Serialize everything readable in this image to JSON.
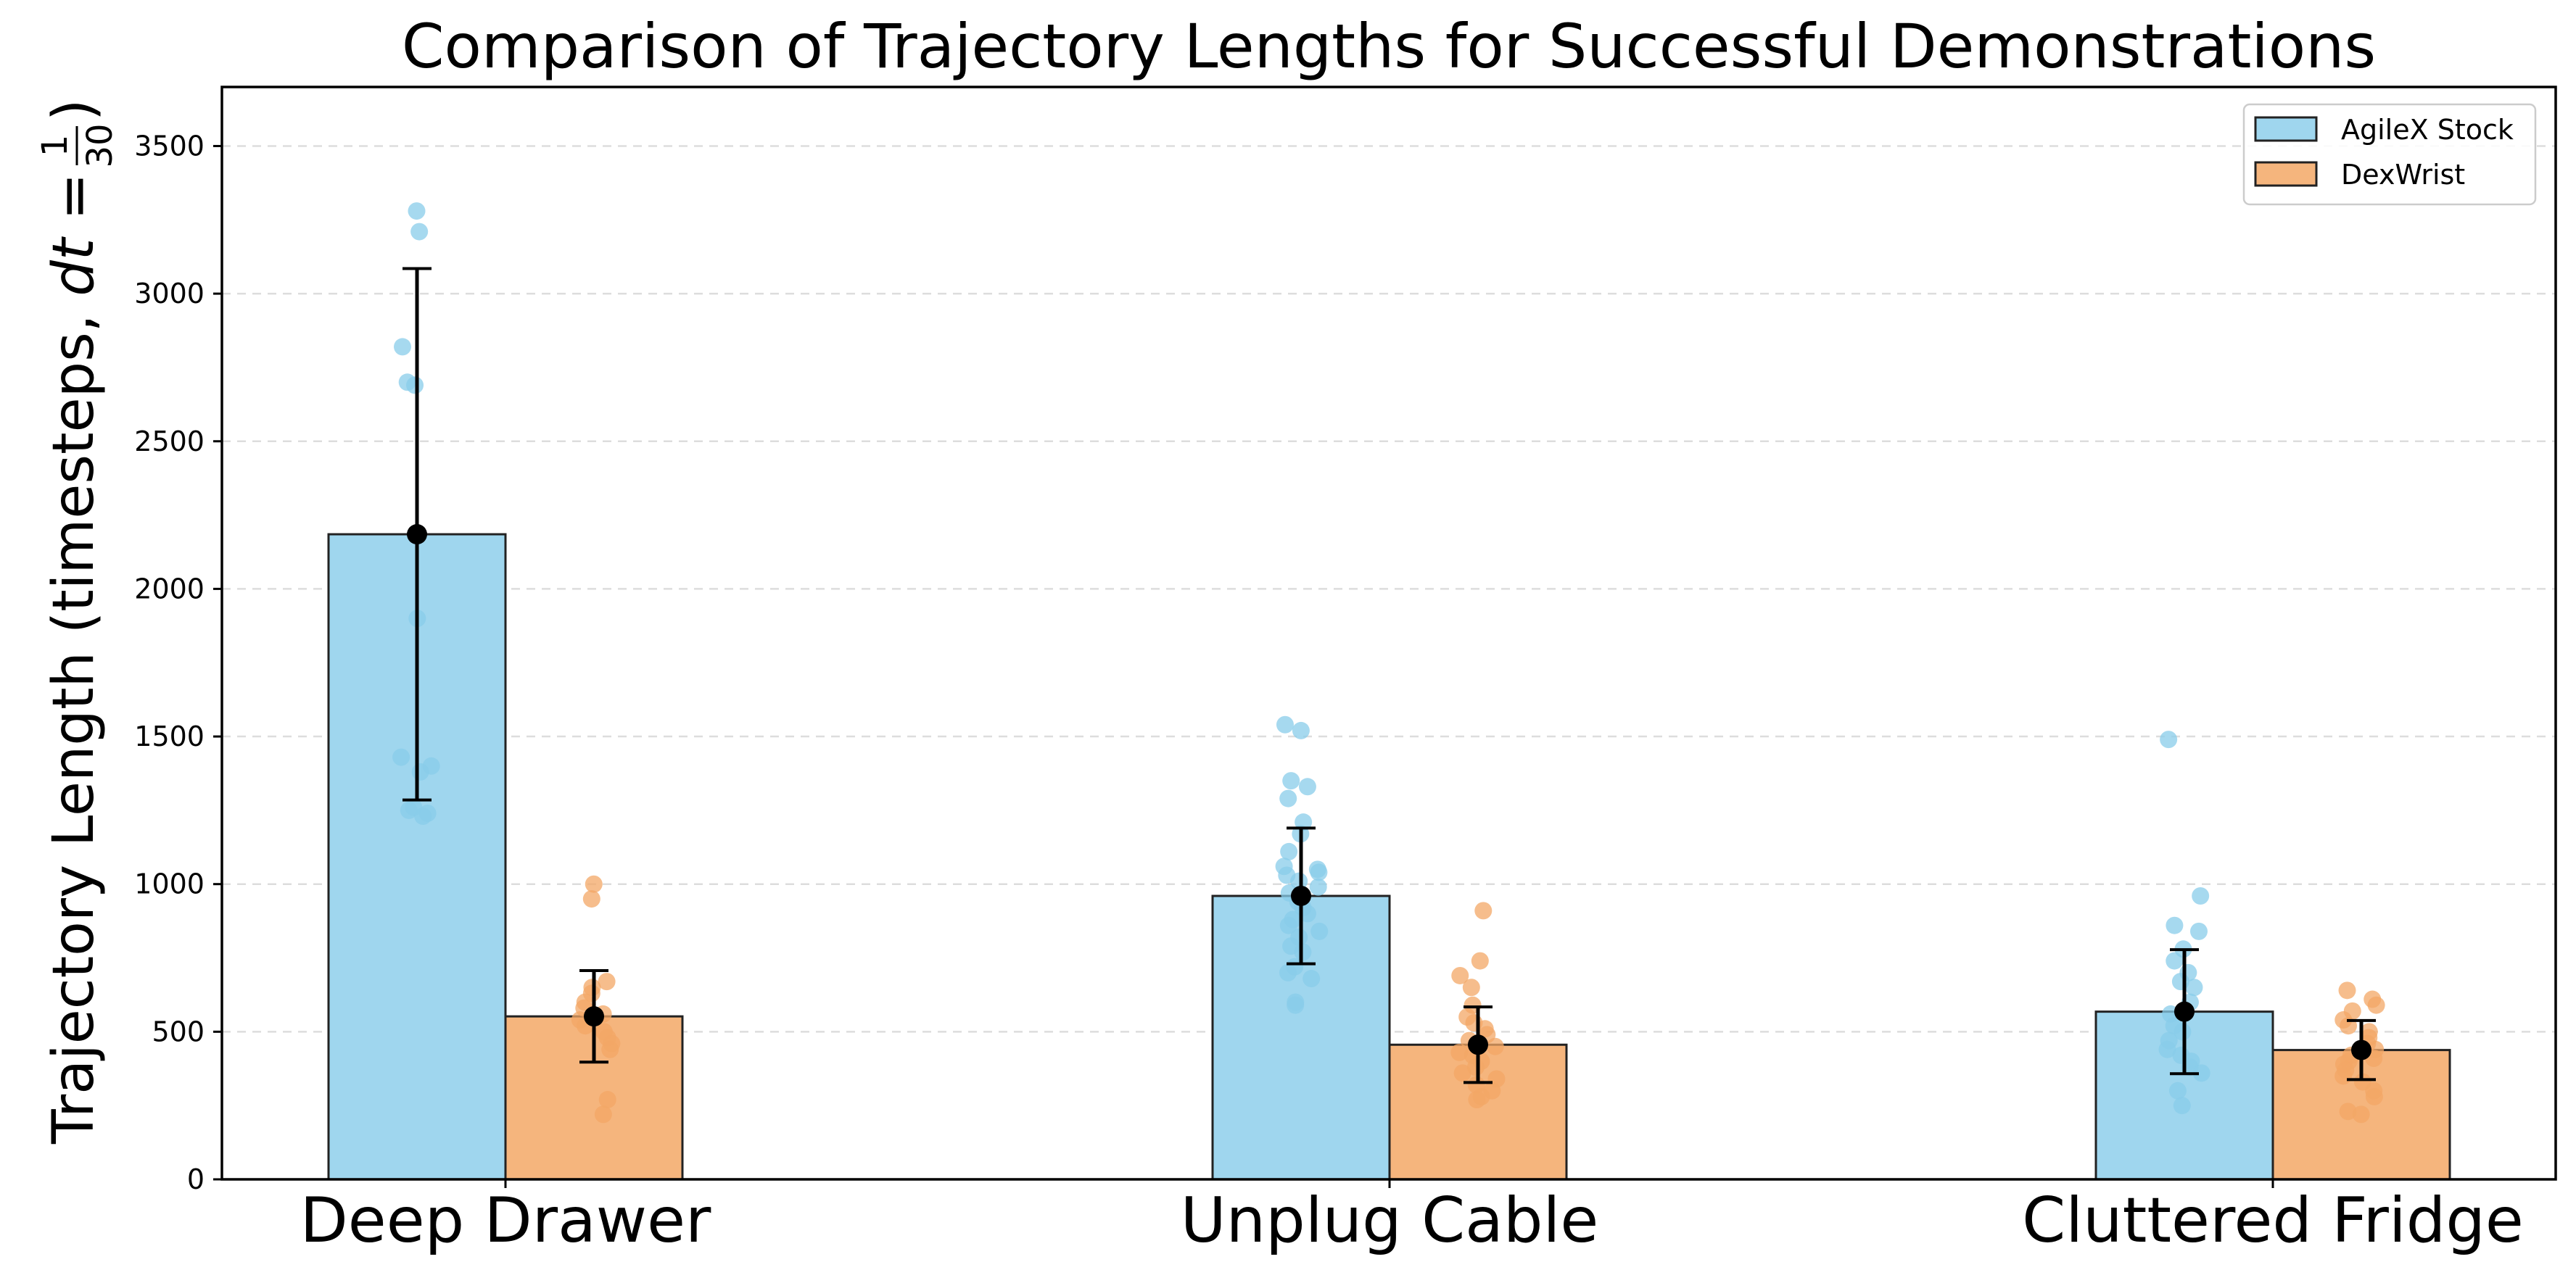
{
  "chart_data": {
    "type": "bar",
    "title": "Comparison of Trajectory Lengths for Successful Demonstrations",
    "ylabel": {
      "main": "Trajectory Length (timesteps, ",
      "dt": "dt",
      "eq": " = ",
      "num": "1",
      "den": "30",
      "close": ")"
    },
    "xlabel": "",
    "categories": [
      "Deep Drawer",
      "Unplug Cable",
      "Cluttered Fridge"
    ],
    "ylim": [
      0,
      3700
    ],
    "yticks": [
      0,
      500,
      1000,
      1500,
      2000,
      2500,
      3000,
      3500
    ],
    "grid": true,
    "legend_position": "top-right",
    "series": [
      {
        "name": "AgileX Stock",
        "color": "#9fd6ee",
        "point_color": "#88ccea",
        "values": [
          2185,
          960,
          568
        ],
        "errors": [
          900,
          230,
          210
        ],
        "points": [
          [
            3280,
            3210,
            2820,
            2700,
            2690,
            1900,
            1430,
            1400,
            1380,
            1260,
            1250,
            1240,
            1230
          ],
          [
            1540,
            1520,
            1350,
            1330,
            1290,
            1210,
            1170,
            1110,
            1060,
            1050,
            1040,
            1030,
            1010,
            990,
            970,
            940,
            920,
            900,
            880,
            860,
            840,
            820,
            790,
            770,
            720,
            700,
            680,
            600,
            590
          ],
          [
            1490,
            960,
            860,
            840,
            780,
            740,
            700,
            670,
            650,
            600,
            560,
            520,
            500,
            470,
            440,
            420,
            400,
            380,
            360,
            300,
            250
          ]
        ]
      },
      {
        "name": "DexWrist",
        "color": "#f5b57d",
        "point_color": "#f3a766",
        "values": [
          552,
          456,
          438
        ],
        "errors": [
          155,
          128,
          100
        ],
        "points": [
          [
            1000,
            950,
            670,
            650,
            630,
            600,
            580,
            560,
            540,
            520,
            500,
            480,
            460,
            440,
            270,
            220
          ],
          [
            910,
            740,
            690,
            650,
            590,
            550,
            530,
            510,
            490,
            470,
            450,
            430,
            420,
            400,
            380,
            360,
            340,
            320,
            300,
            280,
            270
          ],
          [
            640,
            610,
            590,
            570,
            540,
            520,
            500,
            480,
            460,
            440,
            420,
            410,
            400,
            390,
            370,
            350,
            330,
            300,
            280,
            230,
            220
          ]
        ]
      }
    ],
    "mean_marker_color": "#000000"
  }
}
